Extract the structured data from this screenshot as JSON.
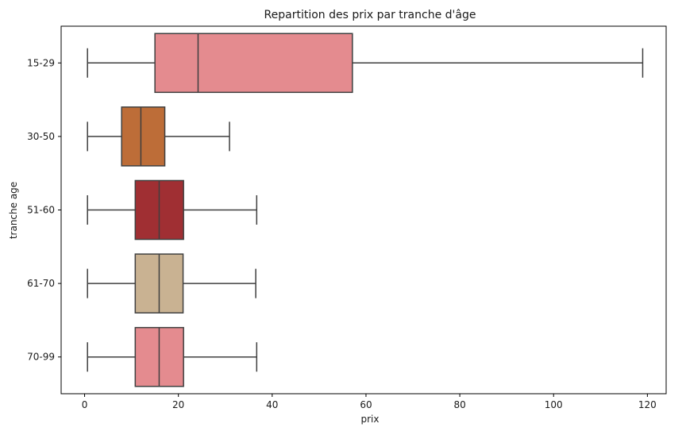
{
  "chart_data": {
    "type": "boxplot",
    "orientation": "horizontal",
    "title": "Repartition des prix par tranche d'âge",
    "xlabel": "prix",
    "ylabel": "tranche age",
    "xlim": [
      -5,
      124
    ],
    "xticks": [
      0,
      20,
      40,
      60,
      80,
      100,
      120
    ],
    "grid": false,
    "categories": [
      "15-29",
      "30-50",
      "51-60",
      "61-70",
      "70-99"
    ],
    "boxes": [
      {
        "category": "15-29",
        "whisker_low": 0.62,
        "q1": 15.0,
        "median": 24.2,
        "q3": 57.1,
        "whisker_high": 119.0,
        "color": "#E48B8F"
      },
      {
        "category": "30-50",
        "whisker_low": 0.62,
        "q1": 7.9,
        "median": 12.0,
        "q3": 17.1,
        "whisker_high": 30.9,
        "color": "#BD6D38"
      },
      {
        "category": "51-60",
        "whisker_low": 0.62,
        "q1": 10.8,
        "median": 15.9,
        "q3": 21.1,
        "whisker_high": 36.7,
        "color": "#A02F33"
      },
      {
        "category": "61-70",
        "whisker_low": 0.62,
        "q1": 10.8,
        "median": 15.9,
        "q3": 21.0,
        "whisker_high": 36.5,
        "color": "#C9B292"
      },
      {
        "category": "70-99",
        "whisker_low": 0.62,
        "q1": 10.8,
        "median": 15.9,
        "q3": 21.1,
        "whisker_high": 36.7,
        "color": "#E48B8F"
      }
    ]
  },
  "colors": {
    "line": "#3f3f3f",
    "axis": "#000000"
  }
}
